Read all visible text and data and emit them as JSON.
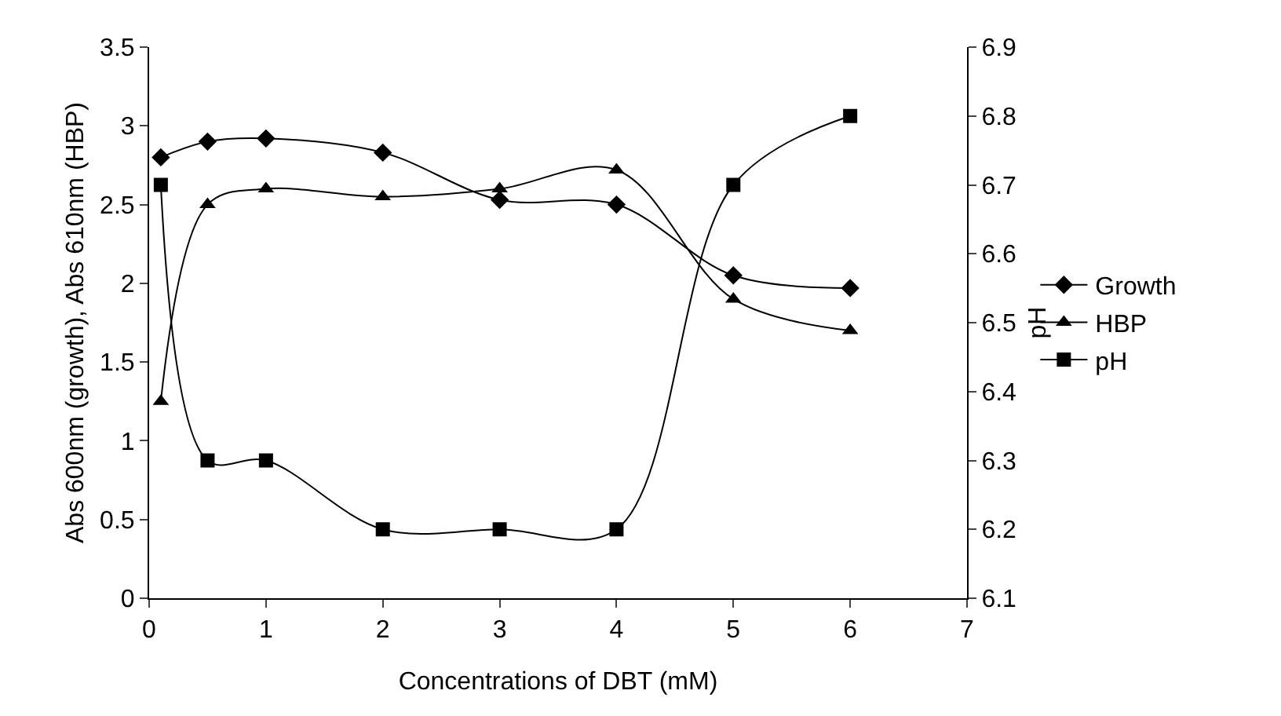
{
  "chart_data": {
    "type": "line",
    "xlabel": "Concentrations of DBT (mM)",
    "ylabel": "Abs 600nm (growth), Abs 610nm (HBP)",
    "y2label": "pH",
    "x": [
      0.1,
      0.5,
      1,
      2,
      3,
      4,
      5,
      6
    ],
    "series": [
      {
        "name": "Growth",
        "color": "#000000",
        "marker": "diamond",
        "values": [
          2.8,
          2.9,
          2.92,
          2.83,
          2.53,
          2.5,
          2.05,
          1.97
        ]
      },
      {
        "name": "HBP",
        "color": "#000000",
        "marker": "triangle",
        "values": [
          1.25,
          2.5,
          2.6,
          2.55,
          2.6,
          2.72,
          1.9,
          1.7
        ]
      },
      {
        "name": "pH",
        "color": "#000000",
        "marker": "square",
        "axis": "y2",
        "values": [
          6.7,
          6.3,
          6.3,
          6.2,
          6.2,
          6.2,
          6.7,
          6.8
        ]
      }
    ],
    "xlim": [
      0,
      7
    ],
    "xticks": [
      0,
      1,
      2,
      3,
      4,
      5,
      6,
      7
    ],
    "ylim": [
      0,
      3.5
    ],
    "yticks": [
      0,
      0.5,
      1,
      1.5,
      2,
      2.5,
      3,
      3.5
    ],
    "y2lim": [
      6.1,
      6.9
    ],
    "y2ticks": [
      6.1,
      6.2,
      6.3,
      6.4,
      6.5,
      6.6,
      6.7,
      6.8,
      6.9
    ],
    "grid": false,
    "legend": "right",
    "line_style": "solid"
  }
}
